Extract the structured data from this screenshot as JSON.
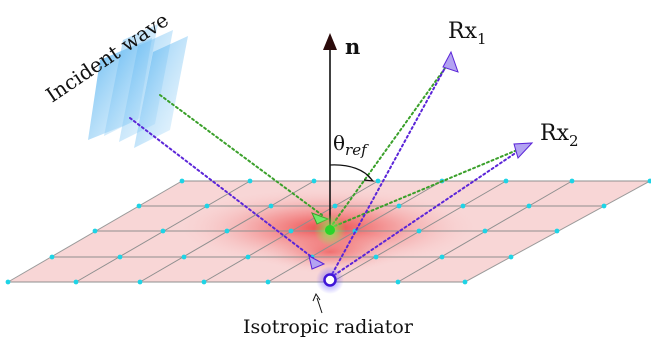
{
  "labels": {
    "incident": "Incident wave",
    "normal": "n",
    "theta_base": "θ",
    "theta_sub": "ref",
    "rx1_base": "Rx",
    "rx1_sub": "1",
    "rx2_base": "Rx",
    "rx2_sub": "2",
    "radiator": "Isotropic radiator"
  },
  "colors": {
    "plane_fill": "#f6caca",
    "plane_glow": "#ef3b3b",
    "grid_line": "#8c8c8c",
    "grid_node": "#22d3e6",
    "green_ray": "#3aa02a",
    "purple_ray": "#5b25d8",
    "wave": "#59b6ef",
    "green_source": "#2ad42a",
    "radiator": "#3f16d8",
    "arrow_head": "#b3a3f2"
  }
}
